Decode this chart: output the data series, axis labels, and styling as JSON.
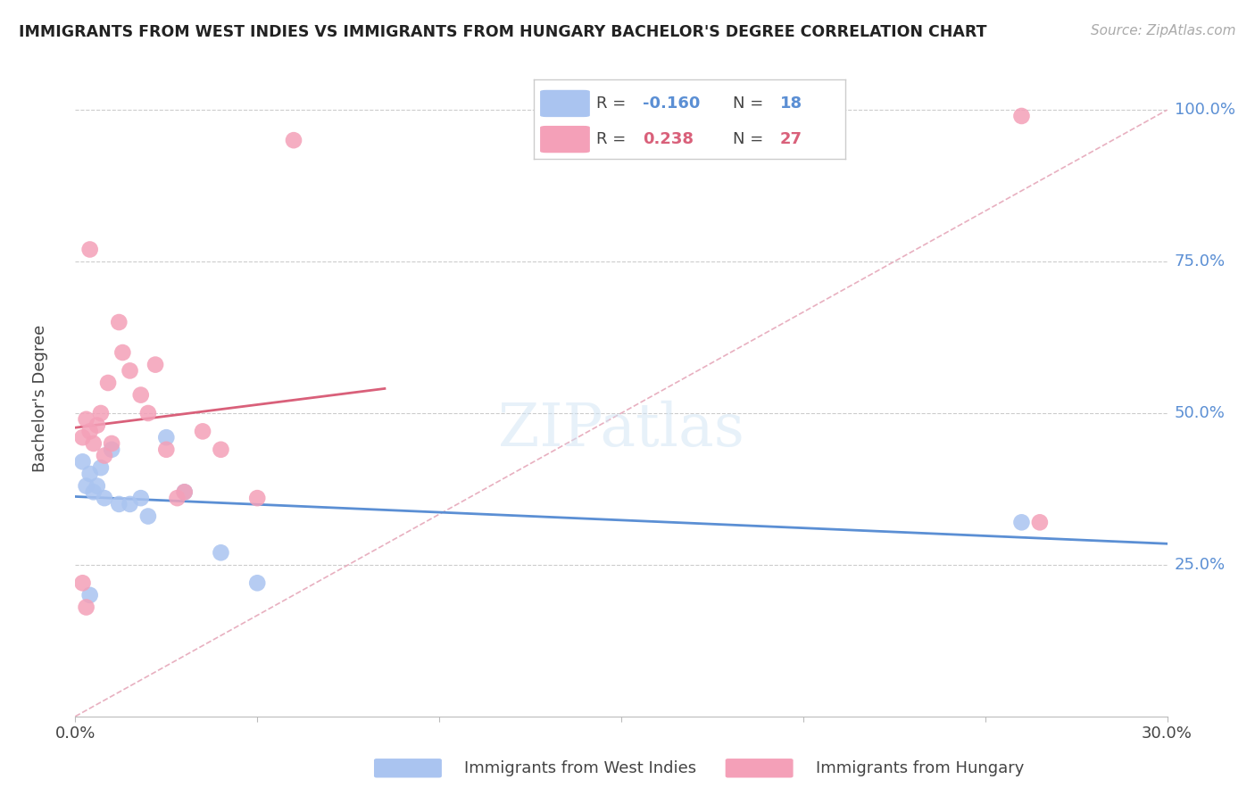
{
  "title": "IMMIGRANTS FROM WEST INDIES VS IMMIGRANTS FROM HUNGARY BACHELOR'S DEGREE CORRELATION CHART",
  "source": "Source: ZipAtlas.com",
  "ylabel": "Bachelor's Degree",
  "blue_label": "Immigrants from West Indies",
  "pink_label": "Immigrants from Hungary",
  "blue_color": "#aac4f0",
  "pink_color": "#f4a0b8",
  "blue_line_color": "#5b8fd4",
  "pink_line_color": "#d9607a",
  "diagonal_color": "#e8b0c0",
  "grid_color": "#cccccc",
  "xlim": [
    0.0,
    0.3
  ],
  "ylim": [
    0.0,
    1.05
  ],
  "blue_R": -0.16,
  "blue_N": 18,
  "pink_R": 0.238,
  "pink_N": 27,
  "background_color": "#ffffff",
  "blue_x": [
    0.002,
    0.003,
    0.004,
    0.005,
    0.006,
    0.007,
    0.008,
    0.01,
    0.012,
    0.015,
    0.018,
    0.02,
    0.025,
    0.03,
    0.04,
    0.05,
    0.26,
    0.004
  ],
  "blue_y": [
    0.42,
    0.38,
    0.4,
    0.37,
    0.38,
    0.41,
    0.36,
    0.44,
    0.35,
    0.35,
    0.36,
    0.33,
    0.46,
    0.37,
    0.27,
    0.22,
    0.32,
    0.2
  ],
  "pink_x": [
    0.002,
    0.003,
    0.004,
    0.005,
    0.006,
    0.007,
    0.008,
    0.009,
    0.01,
    0.012,
    0.013,
    0.015,
    0.018,
    0.02,
    0.022,
    0.025,
    0.028,
    0.03,
    0.035,
    0.04,
    0.05,
    0.06,
    0.26,
    0.265,
    0.002,
    0.003,
    0.004
  ],
  "pink_y": [
    0.46,
    0.49,
    0.77,
    0.45,
    0.48,
    0.5,
    0.43,
    0.55,
    0.45,
    0.65,
    0.6,
    0.57,
    0.53,
    0.5,
    0.58,
    0.44,
    0.36,
    0.37,
    0.47,
    0.44,
    0.36,
    0.95,
    0.99,
    0.32,
    0.22,
    0.18,
    0.47
  ]
}
